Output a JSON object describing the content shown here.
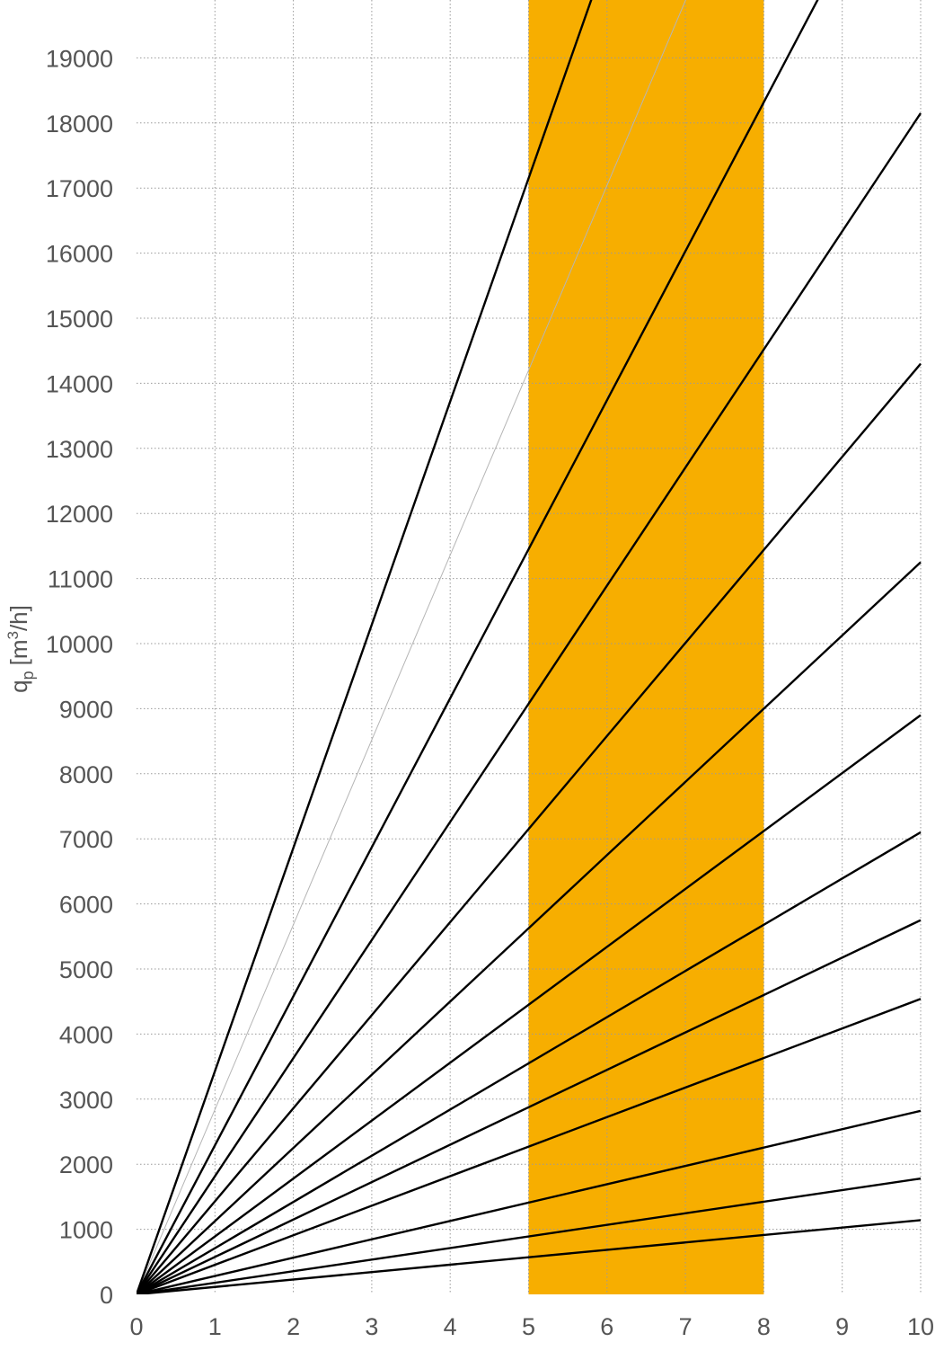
{
  "chart_data": {
    "type": "line",
    "title": "",
    "xlabel": "",
    "ylabel": "qp [m³/h]",
    "ylabel_parts": {
      "q": "q",
      "sub": "p",
      "unit_pre": "[m",
      "sup": "3",
      "unit_post": "/h]"
    },
    "xlim": [
      0,
      10
    ],
    "ylim": [
      0,
      19800
    ],
    "x_ticks": [
      0,
      1,
      2,
      3,
      4,
      5,
      6,
      7,
      8,
      9,
      10
    ],
    "y_ticks": [
      0,
      1000,
      2000,
      3000,
      4000,
      5000,
      6000,
      7000,
      8000,
      9000,
      10000,
      11000,
      12000,
      13000,
      14000,
      15000,
      16000,
      17000,
      18000,
      19000
    ],
    "grid": true,
    "highlight_band": {
      "x_from": 5,
      "x_to": 8,
      "color": "#F7AE00"
    },
    "series": [
      {
        "x": [
          0,
          10
        ],
        "y": [
          0,
          1140
        ]
      },
      {
        "x": [
          0,
          10
        ],
        "y": [
          0,
          1780
        ]
      },
      {
        "x": [
          0,
          10
        ],
        "y": [
          0,
          2820
        ]
      },
      {
        "x": [
          0,
          10
        ],
        "y": [
          0,
          4540
        ]
      },
      {
        "x": [
          0,
          10
        ],
        "y": [
          0,
          5750
        ]
      },
      {
        "x": [
          0,
          10
        ],
        "y": [
          0,
          7100
        ]
      },
      {
        "x": [
          0,
          10
        ],
        "y": [
          0,
          8900
        ]
      },
      {
        "x": [
          0,
          10
        ],
        "y": [
          0,
          11250
        ]
      },
      {
        "x": [
          0,
          10
        ],
        "y": [
          0,
          14300
        ]
      },
      {
        "x": [
          0,
          10
        ],
        "y": [
          0,
          18150
        ]
      },
      {
        "x": [
          0,
          10
        ],
        "y": [
          0,
          22900
        ]
      },
      {
        "x": [
          0,
          10
        ],
        "y": [
          0,
          34300
        ]
      }
    ],
    "reference_line": {
      "x": [
        0,
        10
      ],
      "y": [
        0,
        28400
      ],
      "color": "#b5b5b5"
    }
  }
}
